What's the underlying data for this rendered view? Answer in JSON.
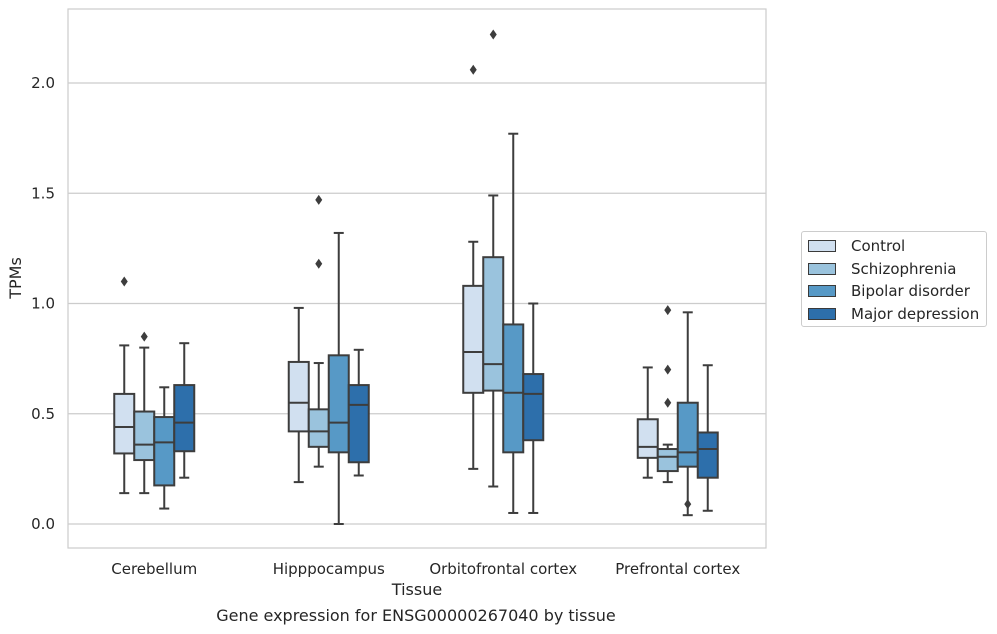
{
  "chart_data": {
    "type": "box",
    "title": "",
    "xlabel": "Tissue",
    "ylabel": "TPMs",
    "caption": "Gene expression for ENSG00000267040 by tissue",
    "ylim": [
      -0.1,
      2.35
    ],
    "yticks": [
      "0.0",
      "0.5",
      "1.0",
      "1.5",
      "2.0"
    ],
    "ytick_values": [
      0.0,
      0.5,
      1.0,
      1.5,
      2.0
    ],
    "grid": "horizontal",
    "legend_position": "right",
    "categories": [
      "Cerebellum",
      "Hipppocampus",
      "Orbitofrontal cortex",
      "Prefrontal cortex"
    ],
    "series": [
      {
        "name": "Control",
        "color": "#d1e0f0",
        "boxes": [
          {
            "whislo": 0.14,
            "q1": 0.32,
            "med": 0.44,
            "q3": 0.59,
            "whishi": 0.81,
            "fliers": [
              1.1
            ]
          },
          {
            "whislo": 0.19,
            "q1": 0.42,
            "med": 0.55,
            "q3": 0.735,
            "whishi": 0.98,
            "fliers": []
          },
          {
            "whislo": 0.25,
            "q1": 0.595,
            "med": 0.78,
            "q3": 1.08,
            "whishi": 1.28,
            "fliers": [
              2.06
            ]
          },
          {
            "whislo": 0.21,
            "q1": 0.3,
            "med": 0.35,
            "q3": 0.475,
            "whishi": 0.71,
            "fliers": []
          }
        ]
      },
      {
        "name": "Schizophrenia",
        "color": "#9ac3dd",
        "boxes": [
          {
            "whislo": 0.14,
            "q1": 0.29,
            "med": 0.36,
            "q3": 0.51,
            "whishi": 0.8,
            "fliers": [
              0.85
            ]
          },
          {
            "whislo": 0.26,
            "q1": 0.35,
            "med": 0.42,
            "q3": 0.52,
            "whishi": 0.73,
            "fliers": [
              1.18,
              1.47
            ]
          },
          {
            "whislo": 0.17,
            "q1": 0.605,
            "med": 0.725,
            "q3": 1.21,
            "whishi": 1.49,
            "fliers": [
              2.22
            ]
          },
          {
            "whislo": 0.19,
            "q1": 0.24,
            "med": 0.305,
            "q3": 0.34,
            "whishi": 0.36,
            "fliers": [
              0.97,
              0.7,
              0.55
            ]
          }
        ]
      },
      {
        "name": "Bipolar disorder",
        "color": "#5799c6",
        "boxes": [
          {
            "whislo": 0.07,
            "q1": 0.175,
            "med": 0.37,
            "q3": 0.485,
            "whishi": 0.62,
            "fliers": []
          },
          {
            "whislo": 0.0,
            "q1": 0.325,
            "med": 0.46,
            "q3": 0.765,
            "whishi": 1.32,
            "fliers": []
          },
          {
            "whislo": 0.05,
            "q1": 0.325,
            "med": 0.595,
            "q3": 0.905,
            "whishi": 1.77,
            "fliers": []
          },
          {
            "whislo": 0.04,
            "q1": 0.26,
            "med": 0.325,
            "q3": 0.55,
            "whishi": 0.96,
            "fliers": [
              0.09
            ]
          }
        ]
      },
      {
        "name": "Major depression",
        "color": "#2d6fab",
        "boxes": [
          {
            "whislo": 0.21,
            "q1": 0.33,
            "med": 0.46,
            "q3": 0.63,
            "whishi": 0.82,
            "fliers": []
          },
          {
            "whislo": 0.22,
            "q1": 0.28,
            "med": 0.54,
            "q3": 0.63,
            "whishi": 0.79,
            "fliers": []
          },
          {
            "whislo": 0.05,
            "q1": 0.38,
            "med": 0.59,
            "q3": 0.68,
            "whishi": 1.0,
            "fliers": []
          },
          {
            "whislo": 0.06,
            "q1": 0.21,
            "med": 0.34,
            "q3": 0.415,
            "whishi": 0.72,
            "fliers": []
          }
        ]
      }
    ]
  }
}
